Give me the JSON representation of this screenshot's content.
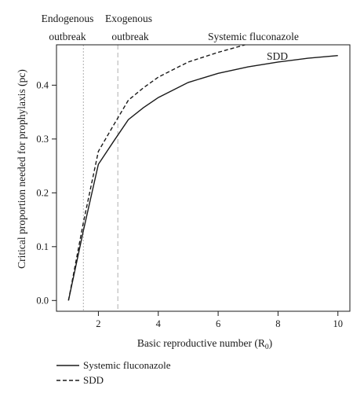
{
  "chart_data": {
    "type": "line",
    "xlabel_main": "Basic reproductive number (R",
    "xlabel_sub": "0",
    "xlabel_end": ")",
    "ylabel": "Critical proportion needed for prophylaxis (pc)",
    "xlim": [
      0.6,
      10.4
    ],
    "ylim": [
      -0.02,
      0.475
    ],
    "x_ticks": [
      2,
      4,
      6,
      8,
      10
    ],
    "y_ticks": [
      "0.0",
      "0.1",
      "0.2",
      "0.3",
      "0.4"
    ],
    "y_tick_values": [
      0.0,
      0.1,
      0.2,
      0.3,
      0.4
    ],
    "grid": false,
    "series": [
      {
        "name": "Systemic fluconazole",
        "style": "solid",
        "x": [
          1,
          1.5,
          2,
          2.5,
          3,
          3.5,
          4,
          5,
          6,
          7,
          8,
          9,
          10
        ],
        "y": [
          0.0,
          0.13,
          0.253,
          0.295,
          0.336,
          0.358,
          0.377,
          0.405,
          0.422,
          0.434,
          0.443,
          0.45,
          0.455
        ]
      },
      {
        "name": "SDD",
        "style": "dashed",
        "x": [
          1,
          1.5,
          2,
          2.5,
          3,
          3.5,
          4,
          5,
          6,
          6.9
        ],
        "y": [
          0.0,
          0.145,
          0.277,
          0.325,
          0.372,
          0.395,
          0.415,
          0.443,
          0.461,
          0.475
        ]
      }
    ],
    "vertical_lines": [
      {
        "label_line1": "Endogenous",
        "label_line2": "outbreak",
        "x": 1.5,
        "style": "dotted",
        "color": "#bdbdbd"
      },
      {
        "label_line1": "Exogenous",
        "label_line2": "outbreak",
        "x": 2.65,
        "style": "dashed",
        "color": "#bdbdbd"
      }
    ],
    "annotations": [
      "Systemic fluconazole",
      "SDD"
    ],
    "legend": {
      "placement": "bottom-left",
      "entries": [
        {
          "label": "Systemic fluconazole",
          "style": "solid"
        },
        {
          "label": "SDD",
          "style": "dashed"
        }
      ]
    },
    "colors": {
      "line": "#1a1a1a",
      "frame": "#1a1a1a",
      "reference_lines": "#bdbdbd"
    }
  }
}
